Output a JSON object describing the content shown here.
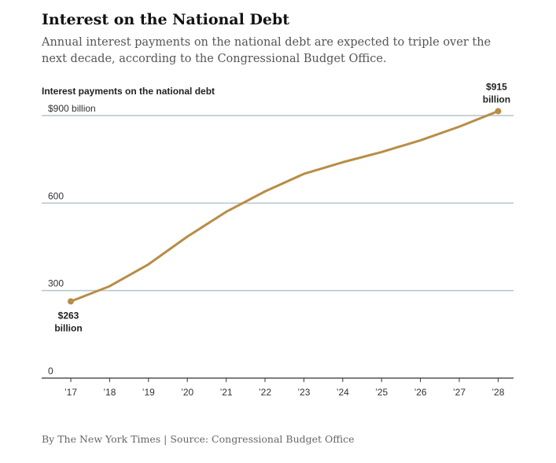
{
  "header": {
    "title": "Interest on the National Debt",
    "subtitle": "Annual interest payments on the national debt are expected to triple over the next decade, according to the Congressional Budget Office."
  },
  "footer": {
    "credit": "By The New York Times | Source: Congressional Budget Office"
  },
  "chart_data": {
    "type": "line",
    "title": "Interest payments on the national debt",
    "x": [
      "’17",
      "’18",
      "’19",
      "’20",
      "’21",
      "’22",
      "’23",
      "’24",
      "’25",
      "’26",
      "’27",
      "’28"
    ],
    "series": [
      {
        "values": [
          263,
          315,
          390,
          485,
          570,
          640,
          700,
          740,
          775,
          815,
          862,
          915
        ]
      }
    ],
    "ylim": [
      0,
      900
    ],
    "y_ticks": [
      0,
      300,
      600,
      900
    ],
    "y_tick_labels": [
      "0",
      "300",
      "600",
      "$900 billion"
    ],
    "grid": true,
    "line_color": "#b88d47",
    "gridline_color": "#b4c4cc",
    "start_annotation": [
      "$263",
      "billion"
    ],
    "end_annotation": [
      "$915",
      "billion"
    ]
  }
}
